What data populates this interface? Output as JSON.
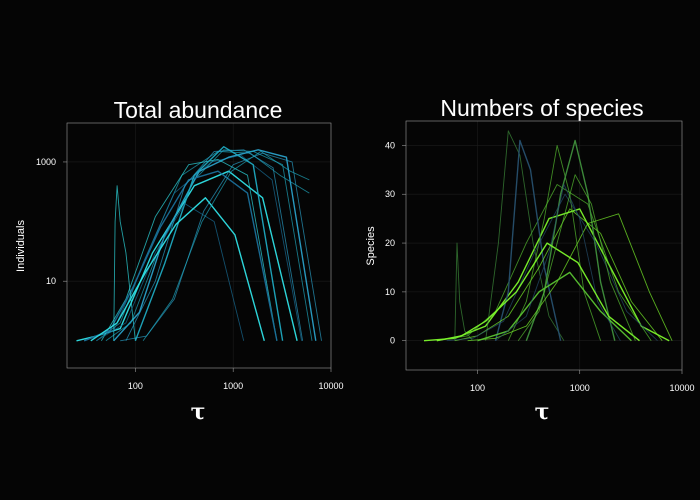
{
  "background": "#050505",
  "chart_data": [
    {
      "type": "line",
      "title": "Total abundance",
      "xlabel": "τ",
      "ylabel": "Individuals",
      "x_scale": "log",
      "y_scale": "log",
      "xlim": [
        20,
        10000
      ],
      "ylim": [
        0.35,
        4500
      ],
      "x_ticks": [
        100,
        1000,
        10000
      ],
      "x_tick_labels": [
        "100",
        "1000",
        "10000"
      ],
      "y_ticks": [
        10,
        1000
      ],
      "y_tick_labels": [
        "10",
        "1000"
      ],
      "grid": true,
      "colors": [
        "#2fe0e6",
        "#1fa9c0",
        "#1a6f99",
        "#2aa0c8"
      ],
      "series_style": "bell-shaped hump curves from a floor of about 1 individual, peaking between 100 and 3000 individuals",
      "series": [
        {
          "x": [
            25,
            40,
            70,
            150,
            400,
            900,
            2000,
            4500
          ],
          "y": [
            1,
            1.2,
            1.6,
            30,
            400,
            700,
            250,
            1
          ]
        },
        {
          "x": [
            40,
            70,
            120,
            300,
            700,
            1500,
            3000,
            6000
          ],
          "y": [
            1,
            2,
            20,
            600,
            1500,
            1400,
            600,
            300
          ]
        },
        {
          "x": [
            30,
            60,
            100,
            250,
            600,
            1200,
            2500,
            5000
          ],
          "y": [
            1,
            1.5,
            10,
            300,
            1000,
            1300,
            500,
            1
          ]
        },
        {
          "x": [
            60,
            110,
            200,
            450,
            900,
            1800,
            3500,
            7000
          ],
          "y": [
            1,
            3,
            60,
            700,
            1200,
            1600,
            1200,
            1
          ]
        },
        {
          "x": [
            45,
            80,
            160,
            350,
            700,
            1400,
            2800
          ],
          "y": [
            1,
            5,
            120,
            900,
            1100,
            600,
            1
          ]
        },
        {
          "x": [
            50,
            90,
            180,
            400,
            800,
            1600,
            3200,
            6400
          ],
          "y": [
            1,
            2,
            40,
            500,
            1600,
            1500,
            900,
            1
          ]
        },
        {
          "x": [
            30,
            55,
            95,
            180,
            350,
            700,
            1400,
            2800
          ],
          "y": [
            1,
            1.5,
            8,
            80,
            500,
            700,
            300,
            1
          ]
        },
        {
          "x": [
            70,
            130,
            250,
            500,
            1000,
            2000,
            4000,
            8000
          ],
          "y": [
            1,
            1.2,
            5,
            150,
            900,
            1400,
            1000,
            1
          ]
        },
        {
          "x": [
            60,
            62,
            65,
            70,
            80,
            100
          ],
          "y": [
            1,
            100,
            400,
            100,
            30,
            1
          ]
        },
        {
          "x": [
            100,
            200,
            400,
            800,
            1600,
            3200
          ],
          "y": [
            1,
            20,
            600,
            1800,
            900,
            1
          ]
        },
        {
          "x": [
            40,
            80,
            160,
            320,
            640,
            1280
          ],
          "y": [
            1,
            2,
            30,
            200,
            100,
            1
          ]
        },
        {
          "x": [
            80,
            160,
            320,
            640,
            1280,
            2560,
            5120
          ],
          "y": [
            1,
            10,
            400,
            1500,
            1600,
            800,
            1
          ]
        },
        {
          "x": [
            35,
            65,
            130,
            260,
            520,
            1040,
            2080
          ],
          "y": [
            1,
            2,
            15,
            90,
            250,
            60,
            1
          ]
        },
        {
          "x": [
            120,
            240,
            480,
            960,
            1920,
            3840,
            6000
          ],
          "y": [
            1,
            5,
            100,
            700,
            1500,
            700,
            500
          ]
        }
      ]
    },
    {
      "type": "line",
      "title": "Numbers of species",
      "xlabel": "τ",
      "ylabel": "Species",
      "x_scale": "log",
      "xlim": [
        20,
        10000
      ],
      "ylim": [
        -6,
        45
      ],
      "x_ticks": [
        100,
        1000,
        10000
      ],
      "x_tick_labels": [
        "100",
        "1000",
        "10000"
      ],
      "y_ticks": [
        0,
        10,
        20,
        30,
        40
      ],
      "y_tick_labels": [
        "0",
        "10",
        "20",
        "30",
        "40"
      ],
      "grid": true,
      "colors": [
        "#7cf52b",
        "#58c232",
        "#3f8f3c",
        "#27506e"
      ],
      "series_style": "bell-shaped hump curves from 0 species, peaking between 10 and 43 species",
      "series": [
        {
          "x": [
            30,
            60,
            120,
            250,
            500,
            1000,
            2000,
            4000,
            7500
          ],
          "y": [
            0,
            0.5,
            3,
            12,
            25,
            27,
            15,
            3,
            0
          ]
        },
        {
          "x": [
            40,
            80,
            150,
            300,
            600,
            1200,
            2400,
            5000
          ],
          "y": [
            0,
            1,
            6,
            20,
            32,
            28,
            10,
            0
          ]
        },
        {
          "x": [
            120,
            160,
            200,
            260,
            350,
            500,
            700
          ],
          "y": [
            0,
            20,
            43,
            38,
            20,
            5,
            0
          ]
        },
        {
          "x": [
            150,
            200,
            260,
            330,
            450,
            650
          ],
          "y": [
            0,
            10,
            41,
            35,
            15,
            0
          ]
        },
        {
          "x": [
            60,
            100,
            200,
            400,
            800,
            1600,
            3200,
            6400
          ],
          "y": [
            0,
            1,
            5,
            15,
            27,
            22,
            8,
            0
          ]
        },
        {
          "x": [
            200,
            300,
            450,
            600,
            800,
            1100,
            1600
          ],
          "y": [
            0,
            8,
            25,
            40,
            30,
            10,
            0
          ]
        },
        {
          "x": [
            300,
            450,
            650,
            900,
            1200,
            1600,
            2200
          ],
          "y": [
            0,
            10,
            30,
            41,
            30,
            12,
            0
          ]
        },
        {
          "x": [
            50,
            90,
            180,
            360,
            720,
            1440,
            2880,
            5760
          ],
          "y": [
            0,
            0.5,
            4,
            18,
            30,
            20,
            6,
            0
          ]
        },
        {
          "x": [
            80,
            150,
            300,
            600,
            1200,
            2400,
            4800,
            8000
          ],
          "y": [
            0,
            0.5,
            3,
            12,
            24,
            26,
            10,
            0
          ]
        },
        {
          "x": [
            100,
            200,
            400,
            800,
            1600,
            3200
          ],
          "y": [
            0,
            2,
            10,
            14,
            6,
            0
          ]
        },
        {
          "x": [
            60,
            63,
            67,
            75,
            90
          ],
          "y": [
            0,
            20,
            8,
            2,
            0
          ]
        },
        {
          "x": [
            150,
            300,
            500,
            700,
            1000,
            1500,
            2500
          ],
          "y": [
            0,
            5,
            18,
            32,
            25,
            8,
            0
          ]
        },
        {
          "x": [
            40,
            70,
            120,
            240,
            480,
            960,
            1920,
            3840
          ],
          "y": [
            0,
            1,
            4,
            10,
            20,
            16,
            5,
            0
          ]
        },
        {
          "x": [
            250,
            400,
            600,
            900,
            1300,
            2000,
            3500
          ],
          "y": [
            0,
            6,
            20,
            34,
            28,
            12,
            0
          ]
        }
      ]
    }
  ]
}
